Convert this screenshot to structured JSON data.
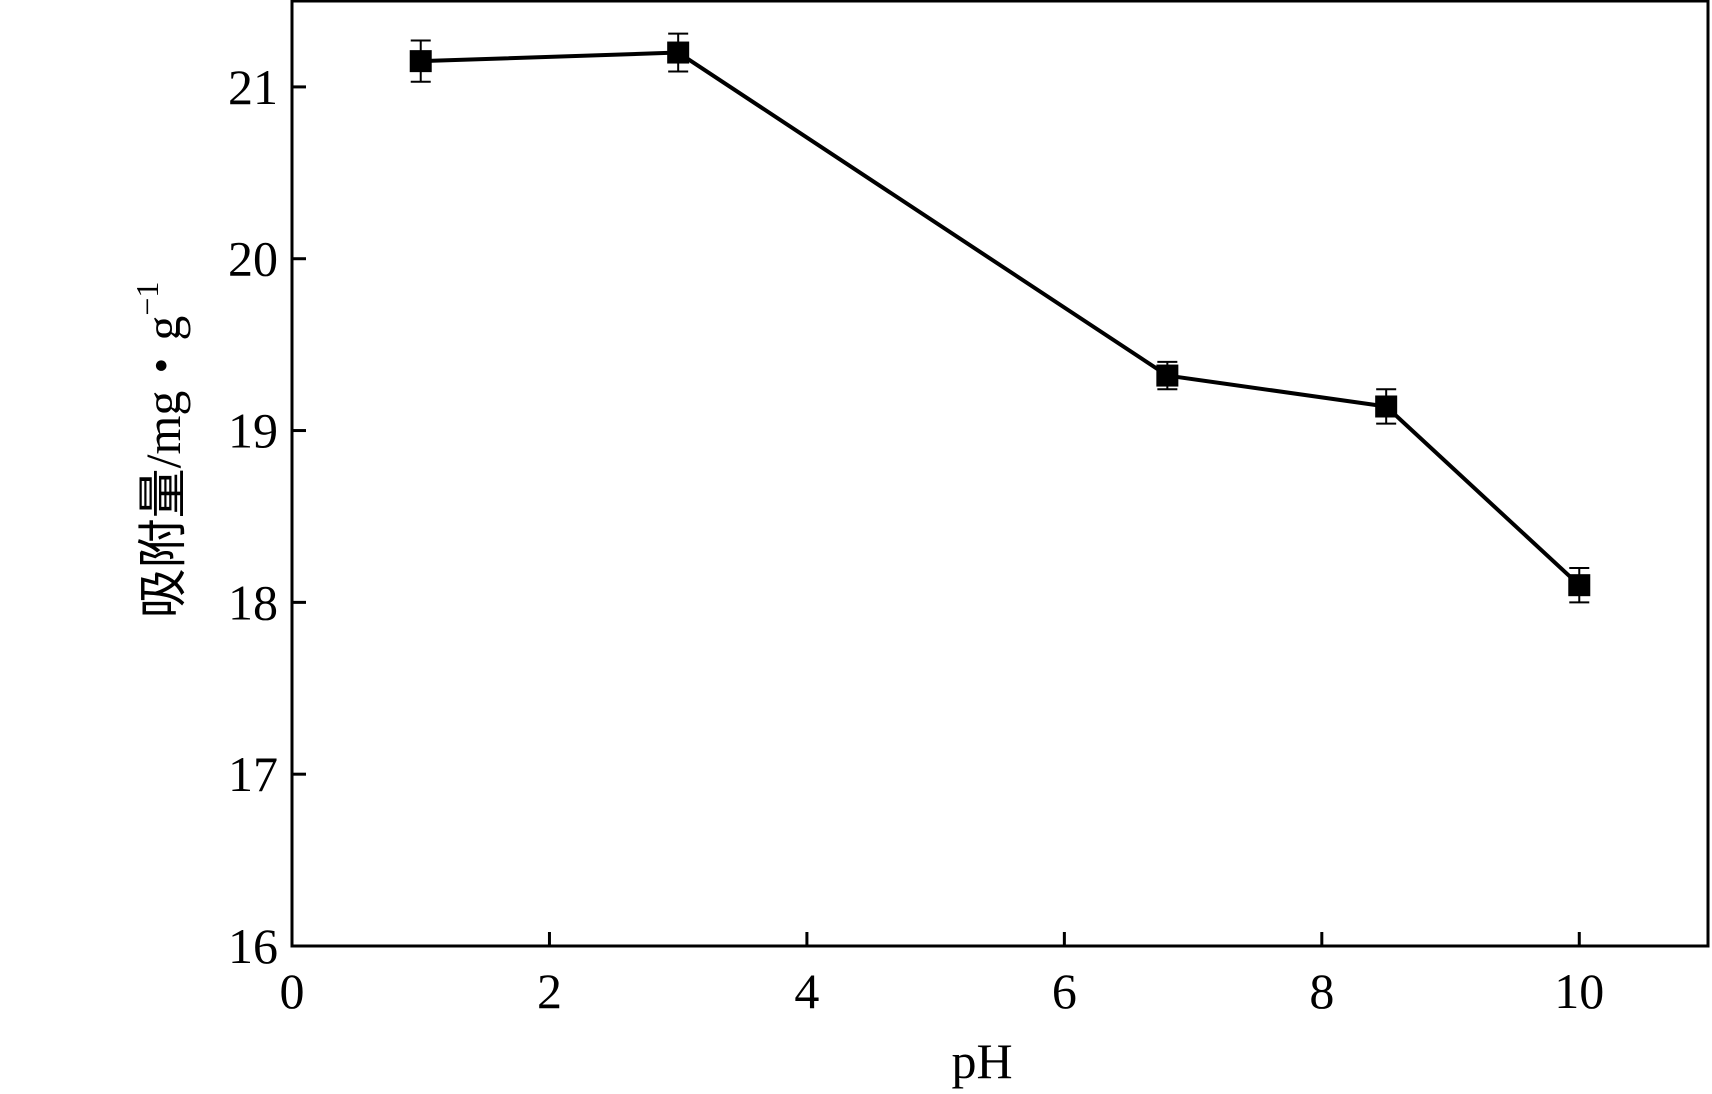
{
  "chart_data": {
    "type": "line",
    "xlabel": "pH",
    "ylabel": "吸附量/mg・g",
    "ylabel_superscript": "−1",
    "xlim": [
      0,
      11
    ],
    "ylim": [
      16,
      21.5
    ],
    "xticks": [
      0,
      2,
      4,
      6,
      8,
      10
    ],
    "yticks": [
      16,
      17,
      18,
      19,
      20,
      21
    ],
    "grid": false,
    "legend": "none",
    "marker": "square",
    "color": "#000000",
    "series": [
      {
        "x": [
          1.0,
          3.0,
          6.8,
          8.5,
          10.0
        ],
        "y": [
          21.15,
          21.2,
          19.32,
          19.14,
          18.1
        ],
        "error": [
          0.12,
          0.11,
          0.08,
          0.1,
          0.1
        ]
      }
    ]
  }
}
